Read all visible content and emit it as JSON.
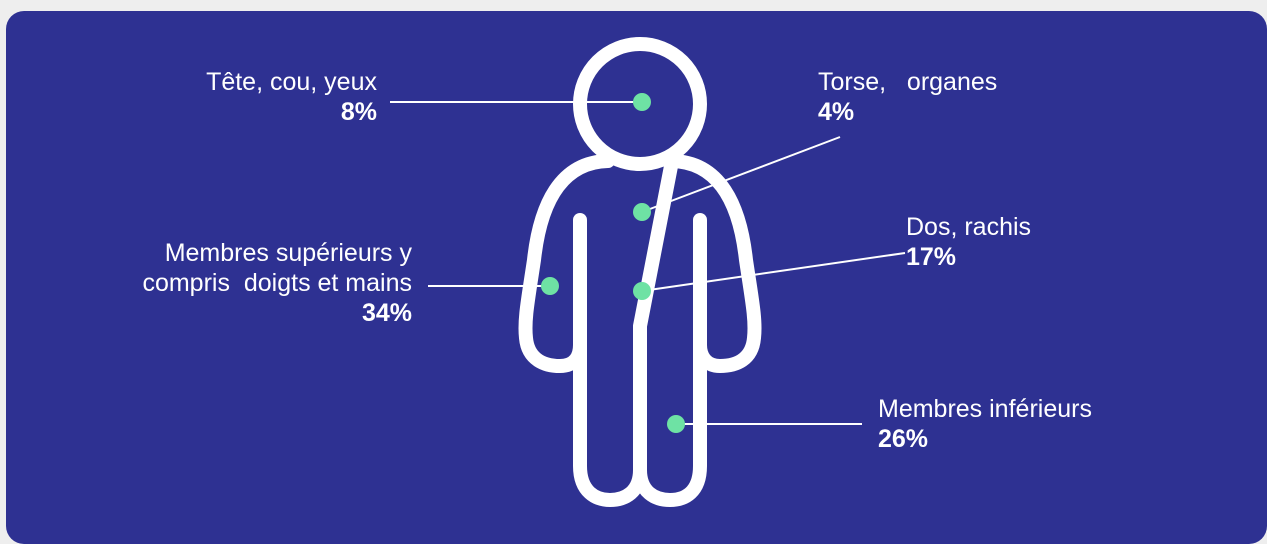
{
  "colors": {
    "background": "#2e3192",
    "figure_stroke": "#ffffff",
    "marker": "#6ee2a4",
    "text": "#ffffff"
  },
  "regions": [
    {
      "id": "head",
      "label": "Tête, cou, yeux",
      "value": "8%"
    },
    {
      "id": "torso",
      "label": "Torse,   organes",
      "value": "4%"
    },
    {
      "id": "back",
      "label": "Dos, rachis",
      "value": "17%"
    },
    {
      "id": "upper-limbs",
      "label_line1": "Membres supérieurs y",
      "label_line2": "compris  doigts et mains",
      "value": "34%"
    },
    {
      "id": "lower-limbs",
      "label": "Membres inférieurs",
      "value": "26%"
    }
  ]
}
